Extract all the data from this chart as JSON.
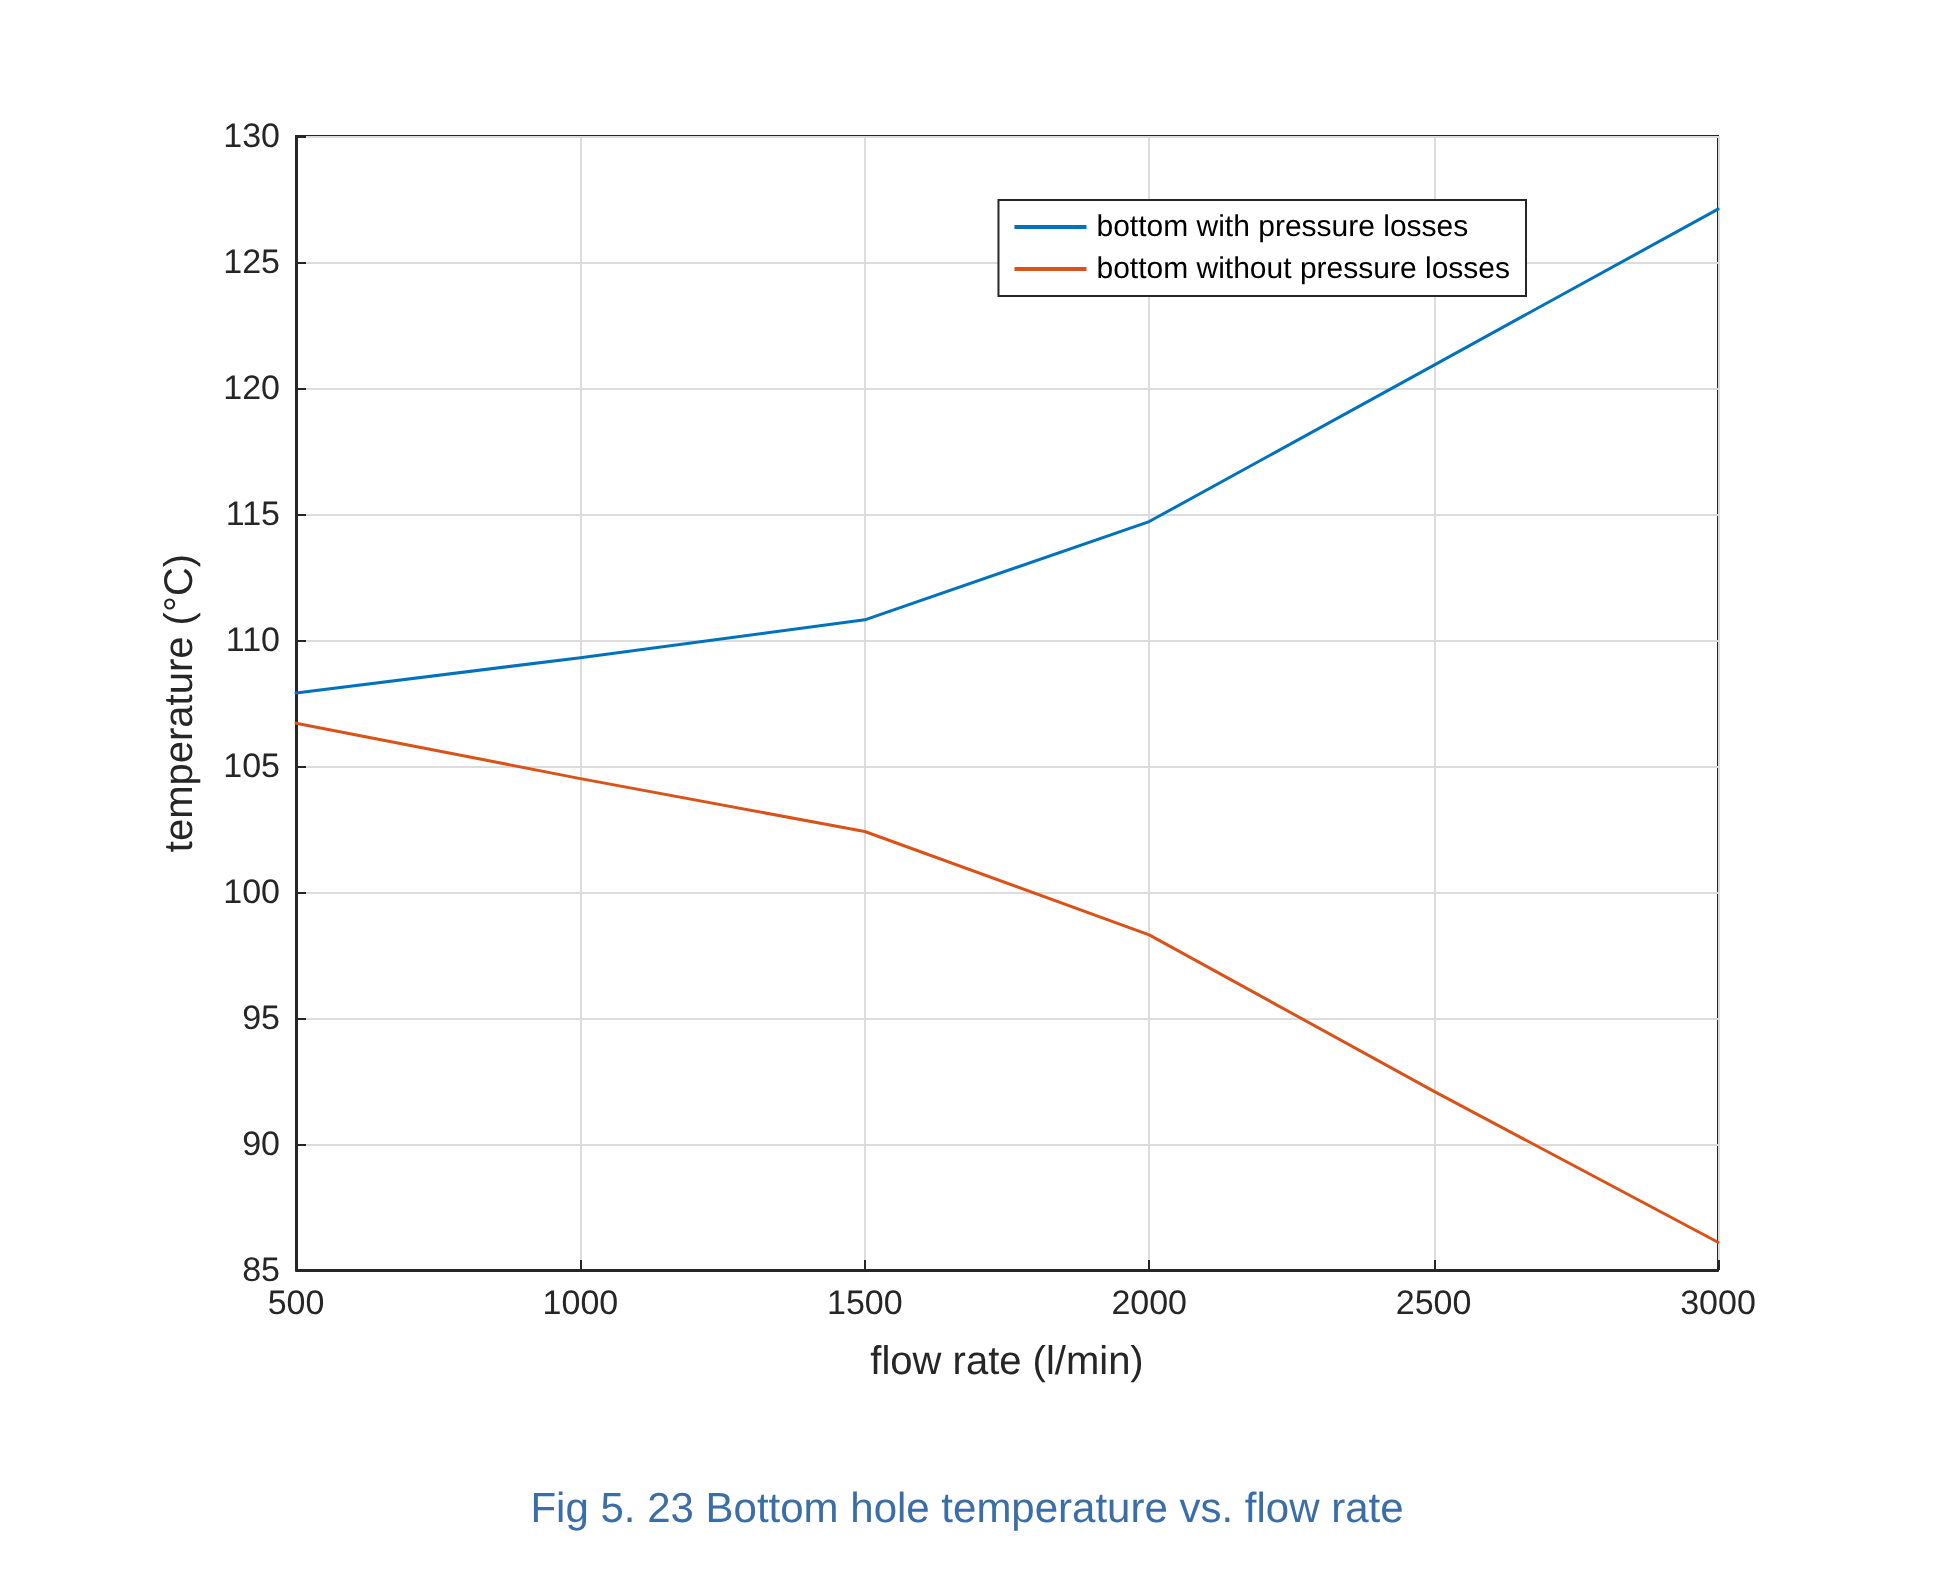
{
  "chart_data": {
    "type": "line",
    "xlabel": "flow rate (l/min)",
    "ylabel": "temperature (°C)",
    "annotations": [
      "Fig 5. 23 Bottom hole temperature vs. flow rate"
    ],
    "x": [
      500,
      1000,
      1500,
      2000,
      2500,
      3000
    ],
    "series": [
      {
        "name": "bottom with pressure losses",
        "color": "#0072bd",
        "values": [
          107.9,
          109.3,
          110.8,
          114.7,
          120.9,
          127.1
        ]
      },
      {
        "name": "bottom without pressure losses",
        "color": "#d95319",
        "values": [
          106.7,
          104.5,
          102.4,
          98.3,
          92.1,
          86.1
        ]
      }
    ],
    "xlim": [
      500,
      3000
    ],
    "xticks": [
      500,
      1000,
      1500,
      2000,
      2500,
      3000
    ],
    "ylim": [
      85,
      130
    ],
    "yticks": [
      85,
      90,
      95,
      100,
      105,
      110,
      115,
      120,
      125,
      130
    ],
    "grid": true,
    "legend": "top right",
    "marker": "none",
    "line_style": "solid"
  }
}
